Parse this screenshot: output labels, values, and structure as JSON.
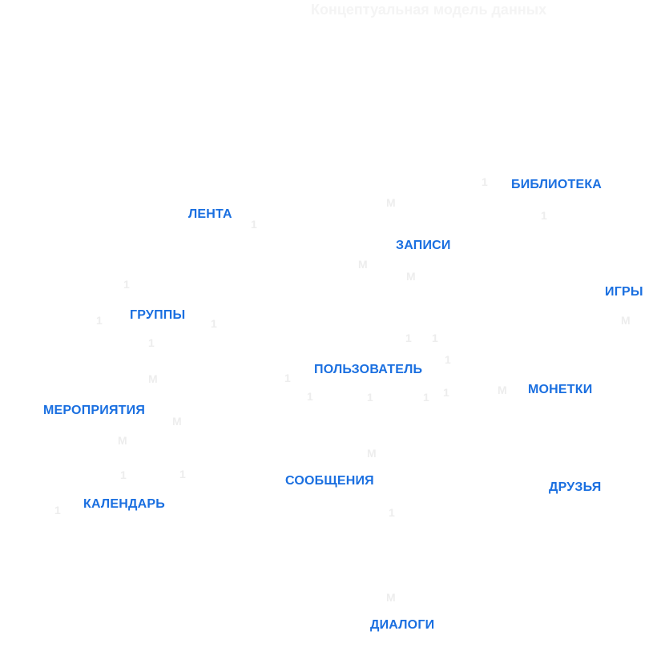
{
  "title": "Концептуальная модель данных",
  "entities": {
    "biblioteka": "БИБЛИОТЕКА",
    "lenta": "ЛЕНТА",
    "zapisi": "ЗАПИСИ",
    "igry": "ИГРЫ",
    "gruppy": "ГРУППЫ",
    "polzovatel": "ПОЛЬЗОВАТЕЛЬ",
    "monetki": "МОНЕТКИ",
    "meropriyatiya": "МЕРОПРИЯТИЯ",
    "soobshcheniya": "СООБЩЕНИЯ",
    "druzya": "ДРУЗЬЯ",
    "kalendar": "КАЛЕНДАРЬ",
    "dialogi": "ДИАЛОГИ"
  },
  "cardinalities": [
    "1",
    "M",
    "1",
    "1",
    "M",
    "M",
    "1",
    "1",
    "1",
    "M",
    "1",
    "1",
    "1",
    "1",
    "1",
    "1",
    "1",
    "1",
    "1",
    "M",
    "M",
    "M",
    "M",
    "1",
    "1",
    "1",
    "M",
    "1",
    "M"
  ]
}
